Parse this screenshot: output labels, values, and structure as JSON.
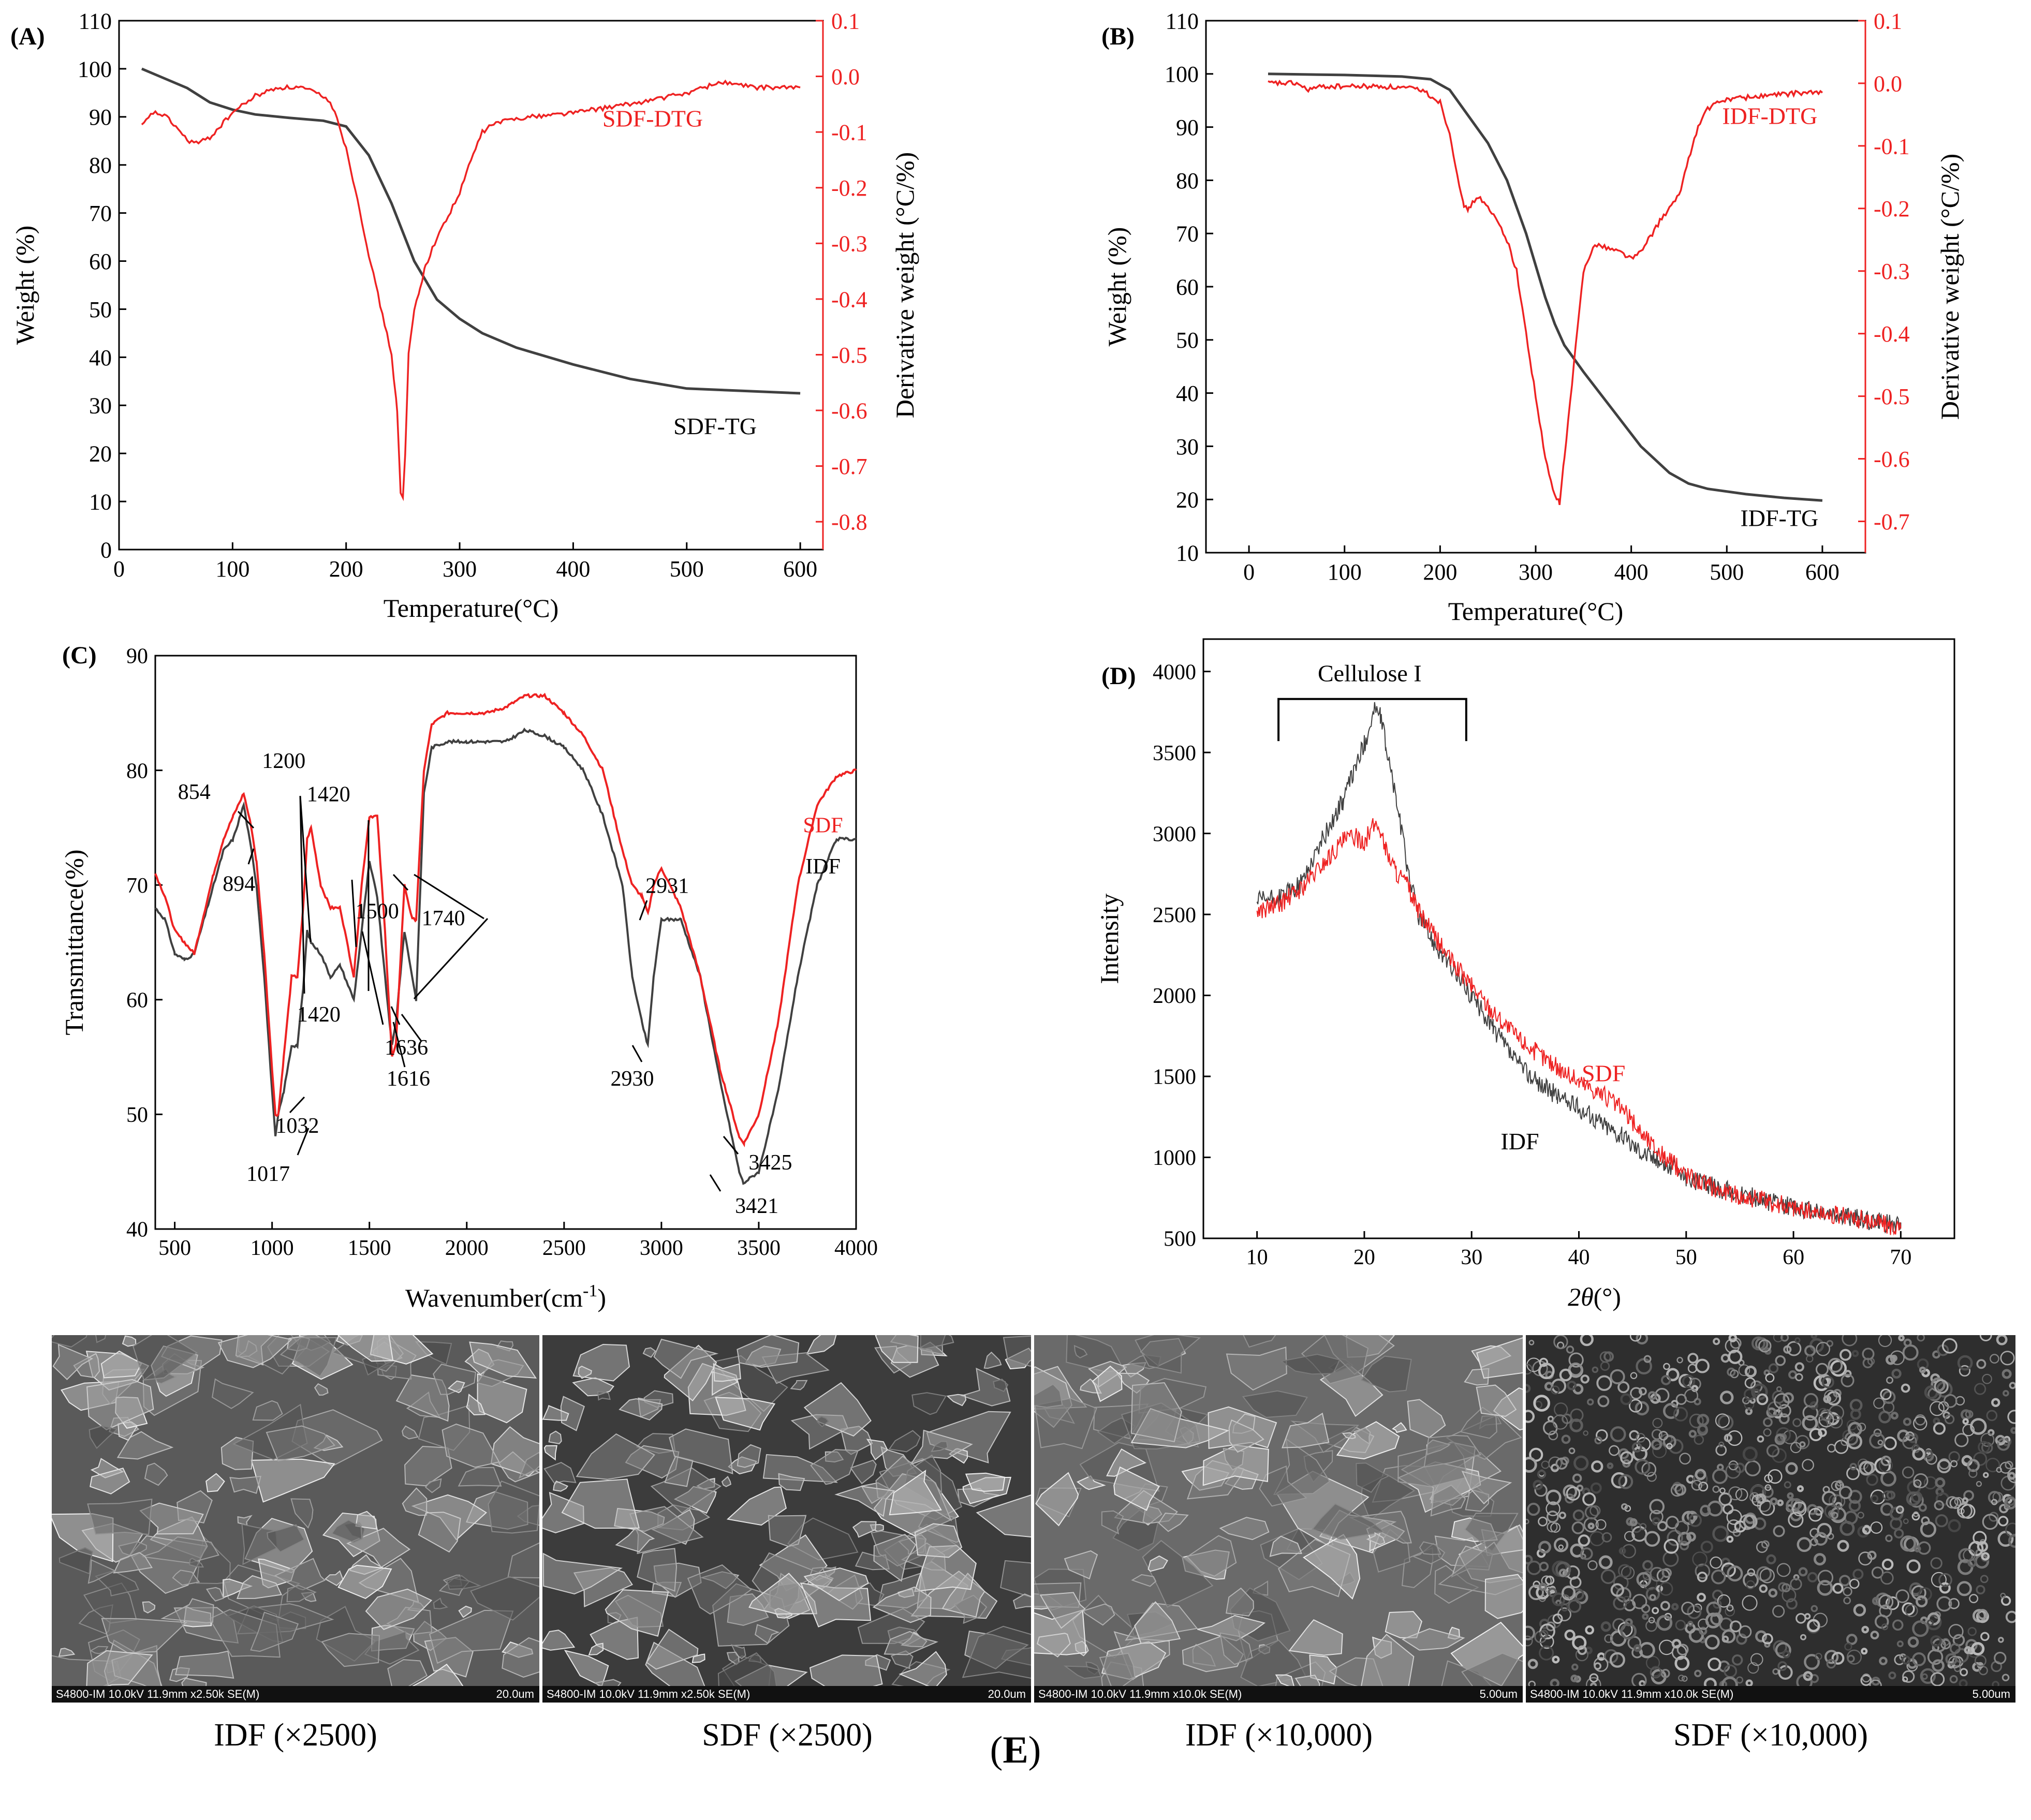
{
  "panels": {
    "A": "(A)",
    "B": "(B)",
    "C": "(C)",
    "D": "(D)",
    "E_open": "(",
    "E_letter": "E",
    "E_close": ")"
  },
  "chart_data": [
    {
      "id": "A",
      "type": "line",
      "xlabel": "Temperature(°C)",
      "ylabel": "Weight (%)",
      "y2label": "Derivative weight (°C/%)",
      "xlim": [
        0,
        620
      ],
      "ylim": [
        0,
        110
      ],
      "y2lim": [
        -0.85,
        0.1
      ],
      "xticks": [
        0,
        100,
        200,
        300,
        400,
        500,
        600
      ],
      "yticks": [
        0,
        10,
        20,
        30,
        40,
        50,
        60,
        70,
        80,
        90,
        100,
        110
      ],
      "y2ticks": [
        -0.8,
        -0.7,
        -0.6,
        -0.5,
        -0.4,
        -0.3,
        -0.2,
        -0.1,
        0.0,
        0.1
      ],
      "y2tick_labels": [
        "-0.8",
        "-0.7",
        "-0.6",
        "-0.5",
        "-0.4",
        "-0.3",
        "-0.2",
        "-0.1",
        "0.0",
        "0.1"
      ],
      "series": [
        {
          "name": "SDF-TG",
          "axis": "left",
          "color": "#404040",
          "x": [
            20,
            40,
            60,
            80,
            100,
            120,
            150,
            180,
            200,
            220,
            240,
            250,
            260,
            280,
            300,
            320,
            350,
            400,
            450,
            500,
            550,
            600
          ],
          "y": [
            100,
            98,
            96,
            93,
            91.5,
            90.5,
            89.8,
            89.2,
            88,
            82,
            72,
            66,
            60,
            52,
            48,
            45,
            42,
            38.5,
            35.5,
            33.5,
            33,
            32.5
          ]
        },
        {
          "name": "SDF-DTG",
          "axis": "right",
          "color": "#ee2222",
          "x": [
            20,
            30,
            40,
            50,
            60,
            70,
            80,
            100,
            120,
            140,
            160,
            180,
            190,
            200,
            210,
            220,
            230,
            240,
            245,
            248,
            250,
            252,
            255,
            260,
            265,
            270,
            280,
            290,
            300,
            310,
            320,
            330,
            350,
            400,
            450,
            500,
            530,
            560,
            600
          ],
          "y": [
            -0.09,
            -0.065,
            -0.07,
            -0.09,
            -0.115,
            -0.12,
            -0.11,
            -0.065,
            -0.035,
            -0.02,
            -0.02,
            -0.035,
            -0.06,
            -0.13,
            -0.22,
            -0.32,
            -0.41,
            -0.5,
            -0.6,
            -0.75,
            -0.76,
            -0.68,
            -0.5,
            -0.42,
            -0.38,
            -0.34,
            -0.29,
            -0.25,
            -0.21,
            -0.15,
            -0.1,
            -0.085,
            -0.075,
            -0.065,
            -0.05,
            -0.03,
            -0.01,
            -0.02,
            -0.02
          ]
        }
      ],
      "annotations": [
        {
          "text": "SDF-DTG",
          "x": 470,
          "y2": -0.09,
          "color": "#ee2222"
        },
        {
          "text": "SDF-TG",
          "x": 525,
          "y": 24,
          "color": "#000000"
        }
      ]
    },
    {
      "id": "B",
      "type": "line",
      "xlabel": "Temperature(°C)",
      "ylabel": "Weight (%)",
      "y2label": "Derivative weight (°C/%)",
      "xlim": [
        -45,
        645
      ],
      "ylim": [
        10,
        110
      ],
      "y2lim": [
        -0.75,
        0.1
      ],
      "xticks": [
        0,
        100,
        200,
        300,
        400,
        500,
        600
      ],
      "yticks": [
        10,
        20,
        30,
        40,
        50,
        60,
        70,
        80,
        90,
        100,
        110
      ],
      "y2ticks": [
        -0.7,
        -0.6,
        -0.5,
        -0.4,
        -0.3,
        -0.2,
        -0.1,
        0.0,
        0.1
      ],
      "y2tick_labels": [
        "-0.7",
        "-0.6",
        "-0.5",
        "-0.4",
        "-0.3",
        "-0.2",
        "-0.1",
        "0.0",
        "0.1"
      ],
      "series": [
        {
          "name": "IDF-TG",
          "axis": "left",
          "color": "#404040",
          "x": [
            20,
            100,
            160,
            190,
            210,
            230,
            250,
            270,
            290,
            310,
            320,
            330,
            350,
            380,
            410,
            440,
            460,
            480,
            520,
            560,
            600
          ],
          "y": [
            100,
            99.8,
            99.5,
            99,
            97,
            92,
            87,
            80,
            70,
            58,
            53,
            49,
            44,
            37,
            30,
            25,
            23,
            22,
            21,
            20.3,
            19.8
          ]
        },
        {
          "name": "IDF-DTG",
          "axis": "right",
          "color": "#ee2222",
          "x": [
            20,
            50,
            60,
            80,
            100,
            140,
            180,
            200,
            210,
            220,
            225,
            230,
            240,
            250,
            260,
            270,
            280,
            290,
            300,
            310,
            320,
            325,
            330,
            340,
            350,
            360,
            370,
            390,
            400,
            410,
            430,
            450,
            460,
            470,
            480,
            500,
            540,
            580,
            600
          ],
          "y": [
            0.0,
            0.0,
            -0.01,
            -0.005,
            -0.005,
            -0.005,
            -0.01,
            -0.03,
            -0.08,
            -0.16,
            -0.2,
            -0.2,
            -0.18,
            -0.2,
            -0.22,
            -0.25,
            -0.3,
            -0.4,
            -0.5,
            -0.6,
            -0.66,
            -0.67,
            -0.6,
            -0.45,
            -0.3,
            -0.26,
            -0.26,
            -0.27,
            -0.28,
            -0.27,
            -0.22,
            -0.18,
            -0.12,
            -0.07,
            -0.04,
            -0.025,
            -0.02,
            -0.015,
            -0.015
          ]
        }
      ],
      "annotations": [
        {
          "text": "IDF-DTG",
          "x": 545,
          "y2": -0.065,
          "color": "#ee2222"
        },
        {
          "text": "IDF-TG",
          "x": 555,
          "y": 15,
          "color": "#000000"
        }
      ]
    },
    {
      "id": "C",
      "type": "line",
      "xlabel_main": "Wavenumber(cm",
      "xlabel_sup": "-1",
      "xlabel_tail": ")",
      "ylabel": "Transmittance(%)",
      "xlim": [
        400,
        4000
      ],
      "ylim": [
        40,
        90
      ],
      "xticks": [
        500,
        1000,
        1500,
        2000,
        2500,
        3000,
        3500,
        4000
      ],
      "yticks": [
        40,
        50,
        60,
        70,
        80,
        90
      ],
      "series": [
        {
          "name": "IDF",
          "color": "#404040",
          "x": [
            400,
            450,
            500,
            550,
            600,
            700,
            750,
            800,
            854,
            894,
            920,
            960,
            1000,
            1017,
            1032,
            1060,
            1100,
            1130,
            1160,
            1180,
            1200,
            1250,
            1300,
            1350,
            1420,
            1460,
            1500,
            1540,
            1580,
            1616,
            1636,
            1680,
            1720,
            1740,
            1780,
            1820,
            1900,
            2000,
            2100,
            2200,
            2300,
            2400,
            2500,
            2600,
            2700,
            2800,
            2850,
            2900,
            2930,
            2960,
            3000,
            3100,
            3200,
            3300,
            3400,
            3421,
            3500,
            3600,
            3700,
            3800,
            3900,
            4000
          ],
          "y": [
            68,
            67,
            64,
            63.5,
            64,
            70,
            73,
            74,
            77,
            73,
            70,
            62,
            52,
            48,
            50,
            52,
            56,
            56,
            61,
            66,
            65,
            64,
            62,
            63,
            60,
            66,
            72,
            69,
            62,
            56,
            58,
            66,
            62,
            60,
            78,
            82,
            82.5,
            82.5,
            82.5,
            82.5,
            83.5,
            83,
            82,
            80,
            76,
            70,
            62,
            58,
            56,
            62,
            67,
            67,
            62,
            53,
            45,
            44,
            45,
            52,
            62,
            70,
            74,
            74
          ]
        },
        {
          "name": "SDF",
          "color": "#ee2222",
          "x": [
            400,
            450,
            500,
            550,
            600,
            700,
            750,
            800,
            854,
            894,
            920,
            960,
            1000,
            1017,
            1032,
            1060,
            1100,
            1130,
            1160,
            1180,
            1200,
            1250,
            1300,
            1350,
            1420,
            1460,
            1500,
            1540,
            1580,
            1616,
            1636,
            1680,
            1720,
            1740,
            1780,
            1820,
            1900,
            2000,
            2100,
            2200,
            2300,
            2400,
            2500,
            2600,
            2700,
            2800,
            2850,
            2900,
            2931,
            2960,
            3000,
            3100,
            3200,
            3300,
            3400,
            3425,
            3500,
            3600,
            3700,
            3800,
            3900,
            4000
          ],
          "y": [
            71,
            69,
            66,
            65,
            64,
            71,
            74,
            76,
            78,
            75,
            72,
            64,
            54,
            50,
            50,
            55,
            62,
            62,
            68,
            74,
            75,
            70,
            68,
            68,
            62,
            70,
            76,
            76,
            66,
            55,
            56,
            70,
            67,
            67,
            80,
            84,
            85,
            85,
            85,
            85.5,
            86.5,
            86.5,
            85,
            83,
            80,
            73,
            70,
            69,
            67.5,
            70,
            71.5,
            68,
            62,
            54,
            48,
            47.5,
            50,
            58,
            70,
            77,
            79.5,
            80
          ]
        }
      ],
      "annotations": [
        {
          "text": "854",
          "x": 600,
          "y": 77.5
        },
        {
          "text": "894",
          "x": 830,
          "y": 69.5
        },
        {
          "text": "1200",
          "x": 1060,
          "y": 80.2
        },
        {
          "text": "1420",
          "x": 1290,
          "y": 77.3
        },
        {
          "text": "1500",
          "x": 1540,
          "y": 67.1
        },
        {
          "text": "1740",
          "x": 1880,
          "y": 66.5
        },
        {
          "text": "1420",
          "x": 1240,
          "y": 58.1
        },
        {
          "text": "1636",
          "x": 1690,
          "y": 55.2
        },
        {
          "text": "1616",
          "x": 1700,
          "y": 52.5
        },
        {
          "text": "1032",
          "x": 1130,
          "y": 48.4
        },
        {
          "text": "1017",
          "x": 980,
          "y": 44.2
        },
        {
          "text": "2931",
          "x": 3030,
          "y": 69.3
        },
        {
          "text": "2930",
          "x": 2850,
          "y": 52.5
        },
        {
          "text": "3425",
          "x": 3560,
          "y": 45.2
        },
        {
          "text": "3421",
          "x": 3490,
          "y": 41.4
        },
        {
          "text": "SDF",
          "x": 3830,
          "y": 74.6,
          "color": "#ee2222"
        },
        {
          "text": "IDF",
          "x": 3830,
          "y": 71.0,
          "color": "#000000"
        }
      ]
    },
    {
      "id": "D",
      "type": "line",
      "xlabel_italic": "2θ",
      "xlabel_tail": "(°)",
      "ylabel": "Intensity",
      "xlim": [
        5,
        75
      ],
      "ylim": [
        500,
        4200
      ],
      "xticks": [
        10,
        20,
        30,
        40,
        50,
        60,
        70
      ],
      "yticks": [
        500,
        1000,
        1500,
        2000,
        2500,
        3000,
        3500,
        4000
      ],
      "series": [
        {
          "name": "IDF",
          "color": "#404040",
          "x": [
            10,
            12,
            14,
            16,
            18,
            19,
            20,
            21,
            21.5,
            22,
            23,
            24,
            25,
            26,
            28,
            30,
            32,
            34,
            36,
            38,
            40,
            42,
            44,
            46,
            48,
            50,
            52,
            54,
            56,
            58,
            60,
            62,
            64,
            66,
            68,
            70
          ],
          "y": [
            2580,
            2600,
            2680,
            2950,
            3200,
            3380,
            3550,
            3780,
            3720,
            3550,
            3200,
            2800,
            2500,
            2380,
            2180,
            2000,
            1800,
            1600,
            1470,
            1380,
            1300,
            1220,
            1130,
            1030,
            960,
            880,
            830,
            790,
            760,
            720,
            690,
            670,
            640,
            620,
            600,
            570
          ]
        },
        {
          "name": "SDF",
          "color": "#ee2222",
          "x": [
            10,
            12,
            14,
            16,
            18,
            19,
            20,
            21,
            21.5,
            22,
            23,
            24,
            25,
            26,
            28,
            30,
            32,
            34,
            36,
            38,
            40,
            42,
            44,
            46,
            48,
            50,
            52,
            54,
            56,
            58,
            60,
            62,
            64,
            66,
            68,
            70
          ],
          "y": [
            2520,
            2560,
            2650,
            2800,
            2950,
            2980,
            2950,
            3060,
            3020,
            2900,
            2760,
            2680,
            2520,
            2420,
            2220,
            2060,
            1900,
            1760,
            1650,
            1560,
            1470,
            1400,
            1300,
            1140,
            1000,
            900,
            830,
            780,
            750,
            720,
            690,
            660,
            640,
            620,
            600,
            560
          ]
        }
      ],
      "annotations": [
        {
          "text": "Cellulose I",
          "x": 20.5,
          "y": 3940
        },
        {
          "text": "SDF",
          "x": 42.3,
          "y": 1470,
          "color": "#ee2222"
        },
        {
          "text": "IDF",
          "x": 34.5,
          "y": 1050,
          "color": "#000000"
        }
      ],
      "bracket": {
        "x1": 12,
        "x2": 29.5,
        "y": 3830,
        "tick_to": 3570
      }
    }
  ],
  "sem_images": [
    {
      "info": "S4800-IM 10.0kV 11.9mm x2.50k SE(M)",
      "scale": "20.0um",
      "caption": "IDF (×2500)"
    },
    {
      "info": "S4800-IM 10.0kV 11.9mm x2.50k SE(M)",
      "scale": "20.0um",
      "caption": "SDF (×2500)"
    },
    {
      "info": "S4800-IM 10.0kV 11.9mm x10.0k SE(M)",
      "scale": "5.00um",
      "caption": "IDF (×10,000)"
    },
    {
      "info": "S4800-IM 10.0kV 11.9mm x10.0k SE(M)",
      "scale": "5.00um",
      "caption": "SDF (×10,000)"
    }
  ]
}
